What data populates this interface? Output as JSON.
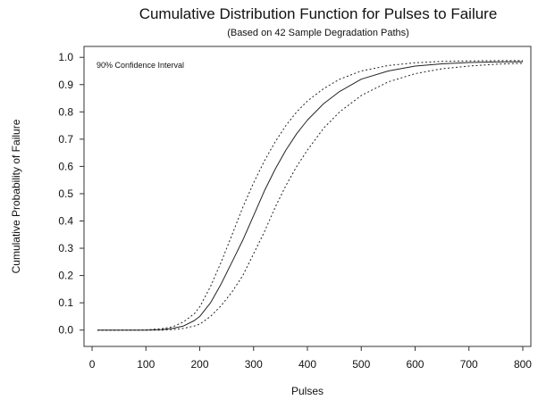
{
  "chart_data": {
    "type": "line",
    "title": "Cumulative Distribution Function for Pulses to Failure",
    "subtitle": "(Based on 42 Sample Degradation Paths)",
    "xlabel": "Pulses",
    "ylabel": "Cumulative Probability of Failure",
    "annotation": "90% Confidence Interval",
    "xlim": [
      -15,
      815
    ],
    "ylim": [
      -0.06,
      1.04
    ],
    "x_ticks": [
      0,
      100,
      200,
      300,
      400,
      500,
      600,
      700,
      800
    ],
    "y_ticks": [
      "0.0",
      "0.1",
      "0.2",
      "0.3",
      "0.4",
      "0.5",
      "0.6",
      "0.7",
      "0.8",
      "0.9",
      "1.0"
    ],
    "grid": false,
    "x": [
      10,
      50,
      100,
      130,
      150,
      170,
      190,
      200,
      220,
      240,
      260,
      280,
      300,
      320,
      340,
      360,
      380,
      400,
      430,
      460,
      500,
      550,
      600,
      650,
      700,
      750,
      800
    ],
    "series": [
      {
        "style": "solid",
        "values": [
          0.0,
          0.0,
          0.0,
          0.002,
          0.006,
          0.015,
          0.035,
          0.05,
          0.1,
          0.17,
          0.25,
          0.33,
          0.42,
          0.51,
          0.59,
          0.66,
          0.72,
          0.77,
          0.83,
          0.875,
          0.92,
          0.95,
          0.968,
          0.976,
          0.981,
          0.983,
          0.984
        ]
      },
      {
        "style": "dashed",
        "values": [
          0.0,
          0.0,
          0.001,
          0.005,
          0.012,
          0.03,
          0.06,
          0.085,
          0.16,
          0.25,
          0.35,
          0.45,
          0.54,
          0.62,
          0.69,
          0.75,
          0.8,
          0.84,
          0.885,
          0.92,
          0.95,
          0.97,
          0.98,
          0.985,
          0.987,
          0.988,
          0.988
        ]
      },
      {
        "style": "dashed",
        "values": [
          0.0,
          0.0,
          0.0,
          0.0,
          0.002,
          0.006,
          0.015,
          0.022,
          0.05,
          0.09,
          0.14,
          0.2,
          0.28,
          0.36,
          0.45,
          0.53,
          0.6,
          0.66,
          0.74,
          0.8,
          0.86,
          0.91,
          0.94,
          0.958,
          0.968,
          0.975,
          0.978
        ]
      }
    ]
  }
}
